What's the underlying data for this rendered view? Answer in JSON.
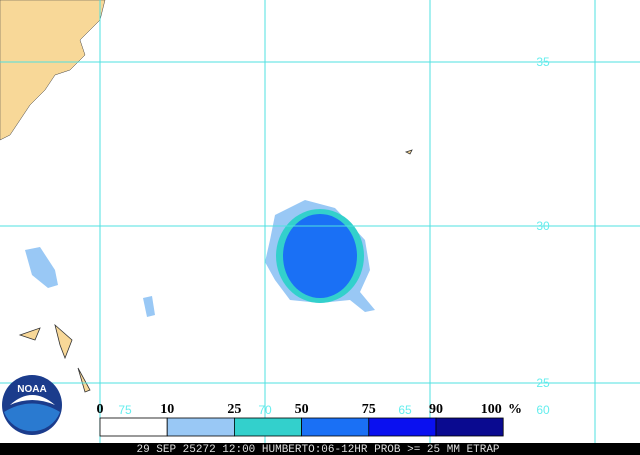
{
  "map": {
    "lat_labels": [
      "35",
      "30",
      "25"
    ],
    "lon_labels": [
      "75",
      "70",
      "65",
      "60"
    ]
  },
  "legend": {
    "labels": [
      "0",
      "10",
      "25",
      "50",
      "75",
      "90",
      "100"
    ],
    "unit": "%",
    "colors": [
      "#ffffff",
      "#99c8f5",
      "#33d0cc",
      "#1a70f5",
      "#0a10f0",
      "#0a0a90"
    ]
  },
  "logo": {
    "text": "NOAA"
  },
  "footer": {
    "text": "29 SEP 25272 12:00 HUMBERTO:06-12HR PROB >= 25 MM ETRAP"
  }
}
